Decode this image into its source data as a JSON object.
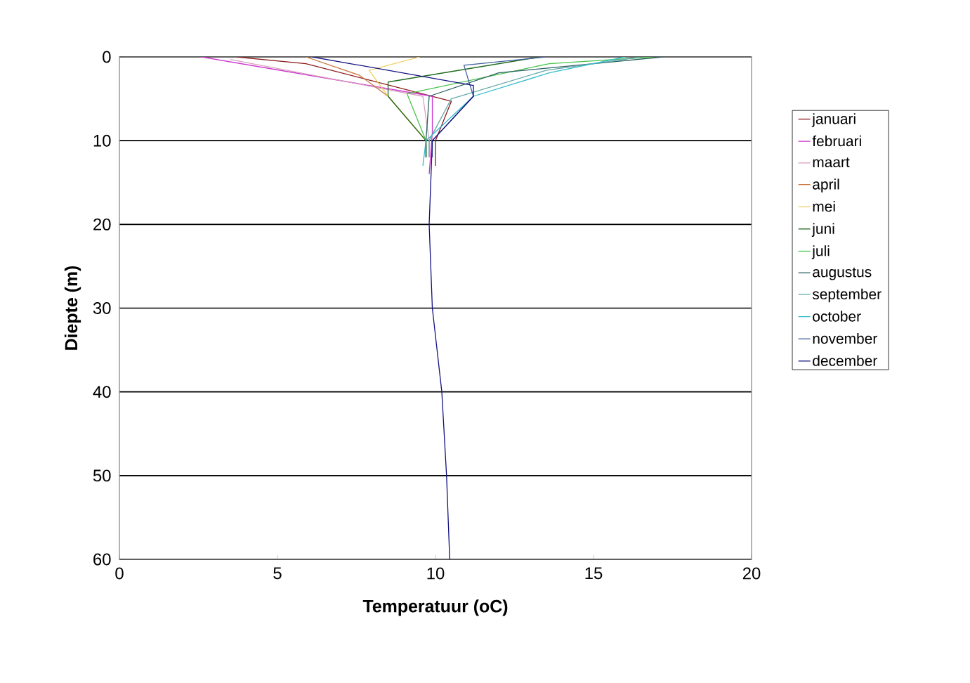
{
  "chart_data": {
    "type": "line",
    "xlabel": "Temperatuur (oC)",
    "ylabel": "Diepte (m)",
    "xlim": [
      0,
      20
    ],
    "xticks": [
      0,
      5,
      10,
      15,
      20
    ],
    "ylim": [
      60,
      0
    ],
    "yticks": [
      0,
      10,
      20,
      30,
      40,
      50,
      60
    ],
    "grid": "y",
    "legend": "right",
    "marker": "none",
    "line_style": "solid",
    "series": [
      {
        "name": "januari",
        "color": "#8b1a1a",
        "x": [
          3.7,
          5.9,
          10.5,
          10.0,
          10.0
        ],
        "values": [
          0,
          0.8,
          5.3,
          10,
          13
        ]
      },
      {
        "name": "februari",
        "color": "#cc33cc",
        "x": [
          2.6,
          9.9,
          9.9,
          9.8
        ],
        "values": [
          0,
          4.7,
          9,
          14
        ]
      },
      {
        "name": "maart",
        "color": "#d9a0c0",
        "x": [
          3.5,
          9.6,
          9.8,
          9.8
        ],
        "values": [
          0.3,
          4.7,
          10,
          12
        ]
      },
      {
        "name": "april",
        "color": "#c87840",
        "x": [
          5.9,
          7.6,
          8.5,
          9.7,
          9.7
        ],
        "values": [
          0,
          2.2,
          4.7,
          10,
          12
        ]
      },
      {
        "name": "mei",
        "color": "#f0d060",
        "x": [
          9.5,
          7.9,
          8.5,
          9.7,
          9.7
        ],
        "values": [
          0,
          1.6,
          4.7,
          10,
          12
        ]
      },
      {
        "name": "juni",
        "color": "#1e6b1e",
        "x": [
          13.3,
          8.5,
          8.5,
          9.7,
          9.7
        ],
        "values": [
          0,
          3,
          4.7,
          10,
          12
        ]
      },
      {
        "name": "juli",
        "color": "#4cc44c",
        "x": [
          16.9,
          13.6,
          9.1,
          9.7,
          9.7
        ],
        "values": [
          0,
          0.8,
          4.4,
          10,
          12
        ]
      },
      {
        "name": "augustus",
        "color": "#2a6060",
        "x": [
          17.2,
          12.0,
          9.8,
          9.7,
          9.7
        ],
        "values": [
          0,
          1.9,
          4.7,
          10,
          12
        ]
      },
      {
        "name": "september",
        "color": "#66aaaa",
        "x": [
          16.5,
          13.5,
          10.5,
          9.8,
          9.8
        ],
        "values": [
          0,
          1.6,
          5,
          10,
          12
        ]
      },
      {
        "name": "october",
        "color": "#33bbcc",
        "x": [
          16.0,
          13.6,
          11.2,
          9.7,
          9.6
        ],
        "values": [
          0,
          1.9,
          4.7,
          10,
          13
        ]
      },
      {
        "name": "november",
        "color": "#4060a0",
        "x": [
          13.5,
          10.9,
          11.2,
          9.9,
          9.9
        ],
        "values": [
          0,
          1,
          4.7,
          10,
          12
        ]
      },
      {
        "name": "december",
        "color": "#101080",
        "x": [
          6.1,
          11.2,
          11.2,
          9.9,
          9.8,
          9.9,
          10.2,
          10.35,
          10.45
        ],
        "values": [
          0,
          3.4,
          4.7,
          10,
          20,
          30,
          40,
          50,
          60
        ]
      }
    ]
  }
}
